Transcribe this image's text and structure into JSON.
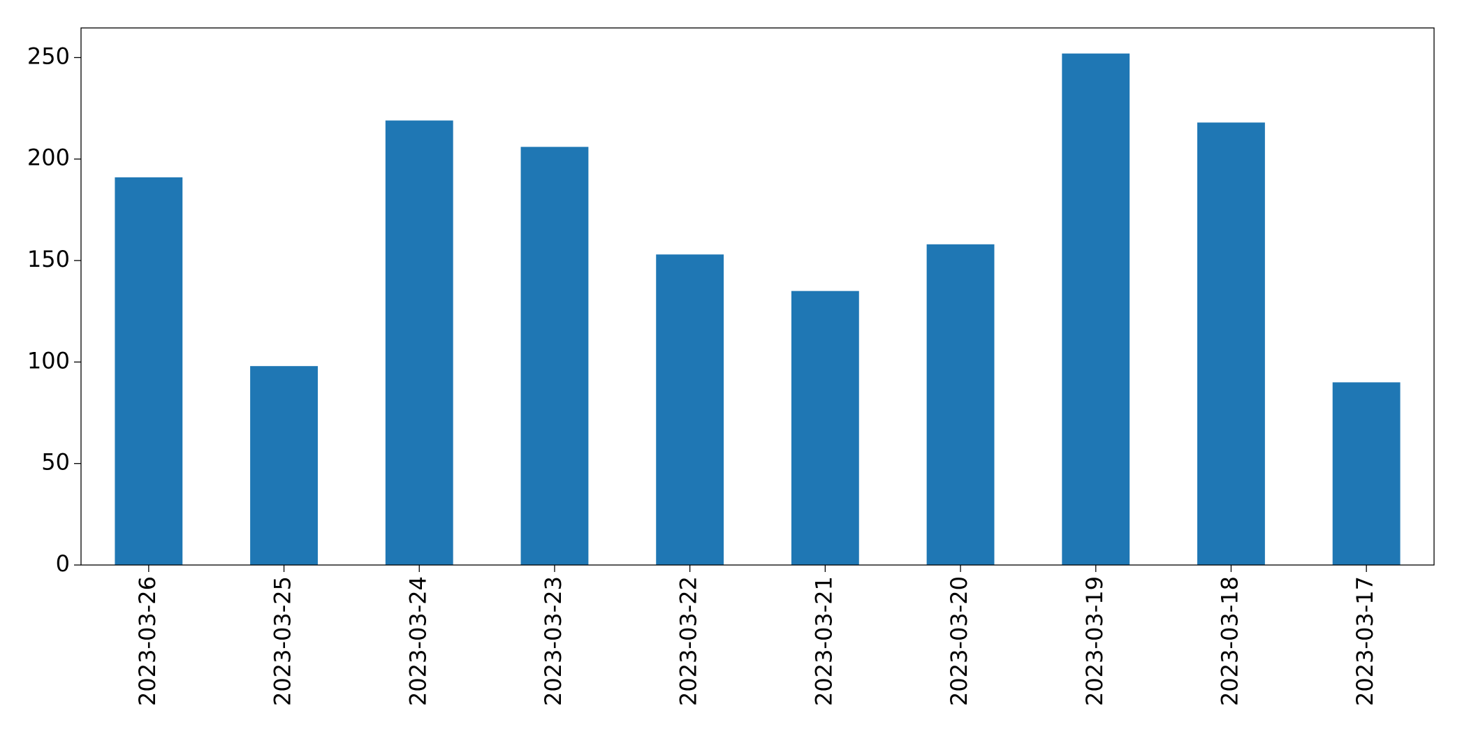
{
  "chart_data": {
    "type": "bar",
    "categories": [
      "2023-03-26",
      "2023-03-25",
      "2023-03-24",
      "2023-03-23",
      "2023-03-22",
      "2023-03-21",
      "2023-03-20",
      "2023-03-19",
      "2023-03-18",
      "2023-03-17"
    ],
    "values": [
      191,
      98,
      219,
      206,
      153,
      135,
      158,
      252,
      218,
      90
    ],
    "color": "#1f77b4",
    "ylim": [
      0,
      264.6
    ],
    "yticks": [
      0,
      50,
      100,
      150,
      200,
      250
    ],
    "grid": false
  }
}
